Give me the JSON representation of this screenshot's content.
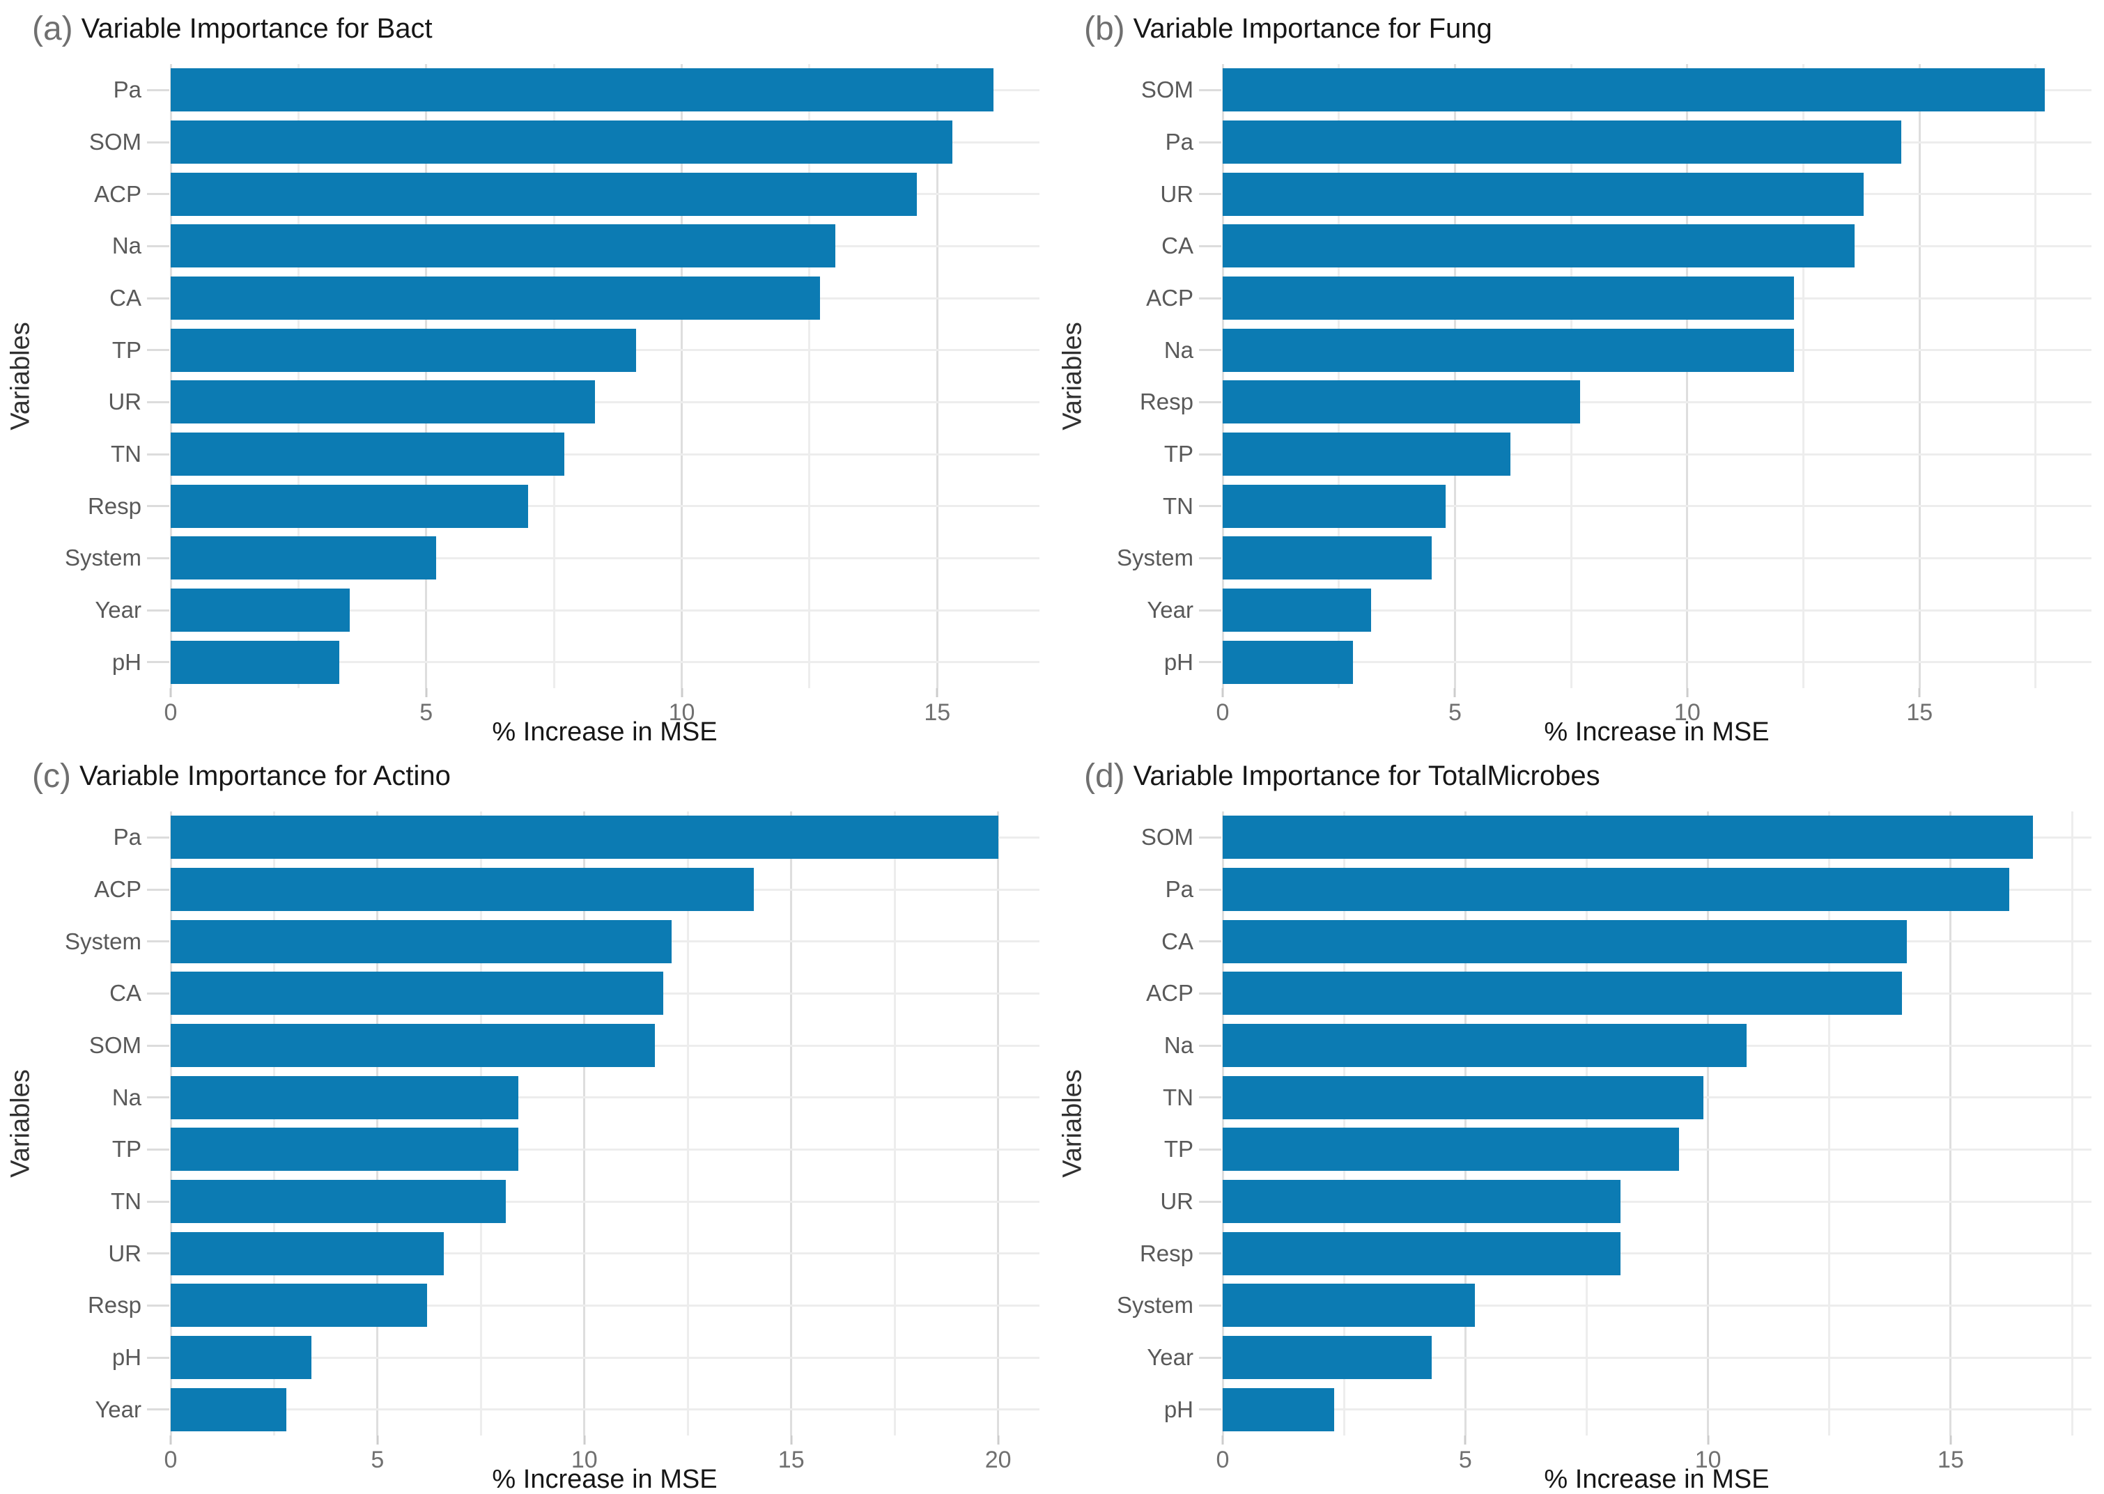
{
  "figure": {
    "background": "#ffffff",
    "bar_color": "#0c7bb3",
    "grid_major_color": "#dedede",
    "grid_minor_color": "#ededed",
    "x_axis_title": "% Increase in MSE",
    "y_axis_title": "Variables"
  },
  "chart_data": [
    {
      "type": "bar",
      "orientation": "horizontal",
      "tag": "(a)",
      "title": "Variable Importance for Bact",
      "xlabel": "% Increase in MSE",
      "ylabel": "Variables",
      "categories": [
        "Pa",
        "SOM",
        "ACP",
        "Na",
        "CA",
        "TP",
        "UR",
        "TN",
        "Resp",
        "System",
        "Year",
        "pH"
      ],
      "values": [
        16.1,
        15.3,
        14.6,
        13.0,
        12.7,
        9.1,
        8.3,
        7.7,
        7.0,
        5.2,
        3.5,
        3.3
      ],
      "xlim": [
        0,
        17.0
      ],
      "xticks": [
        0,
        5,
        10,
        15
      ],
      "minor_ticks": [
        2.5,
        7.5,
        12.5
      ],
      "grid": true,
      "legend": "none"
    },
    {
      "type": "bar",
      "orientation": "horizontal",
      "tag": "(b)",
      "title": "Variable Importance for Fung",
      "xlabel": "% Increase in MSE",
      "ylabel": "Variables",
      "categories": [
        "SOM",
        "Pa",
        "UR",
        "CA",
        "ACP",
        "Na",
        "Resp",
        "TP",
        "TN",
        "System",
        "Year",
        "pH"
      ],
      "values": [
        17.7,
        14.6,
        13.8,
        13.6,
        12.3,
        12.3,
        7.7,
        6.2,
        4.8,
        4.5,
        3.2,
        2.8
      ],
      "xlim": [
        0,
        18.7
      ],
      "xticks": [
        0,
        5,
        10,
        15
      ],
      "minor_ticks": [
        2.5,
        7.5,
        12.5,
        17.5
      ],
      "grid": true,
      "legend": "none"
    },
    {
      "type": "bar",
      "orientation": "horizontal",
      "tag": "(c)",
      "title": "Variable Importance for Actino",
      "xlabel": "% Increase in MSE",
      "ylabel": "Variables",
      "categories": [
        "Pa",
        "ACP",
        "System",
        "CA",
        "SOM",
        "Na",
        "TP",
        "TN",
        "UR",
        "Resp",
        "pH",
        "Year"
      ],
      "values": [
        20.0,
        14.1,
        12.1,
        11.9,
        11.7,
        8.4,
        8.4,
        8.1,
        6.6,
        6.2,
        3.4,
        2.8
      ],
      "xlim": [
        0,
        21.0
      ],
      "xticks": [
        0,
        5,
        10,
        15,
        20
      ],
      "minor_ticks": [
        2.5,
        7.5,
        12.5,
        17.5
      ],
      "grid": true,
      "legend": "none"
    },
    {
      "type": "bar",
      "orientation": "horizontal",
      "tag": "(d)",
      "title": "Variable Importance for TotalMicrobes",
      "xlabel": "% Increase in MSE",
      "ylabel": "Variables",
      "categories": [
        "SOM",
        "Pa",
        "CA",
        "ACP",
        "Na",
        "TN",
        "TP",
        "UR",
        "Resp",
        "System",
        "Year",
        "pH"
      ],
      "values": [
        16.7,
        16.2,
        14.1,
        14.0,
        10.8,
        9.9,
        9.4,
        8.2,
        8.2,
        5.2,
        4.3,
        2.3
      ],
      "xlim": [
        0,
        17.9
      ],
      "xticks": [
        0,
        5,
        10,
        15
      ],
      "minor_ticks": [
        2.5,
        7.5,
        12.5,
        17.5
      ],
      "grid": true,
      "legend": "none"
    }
  ]
}
